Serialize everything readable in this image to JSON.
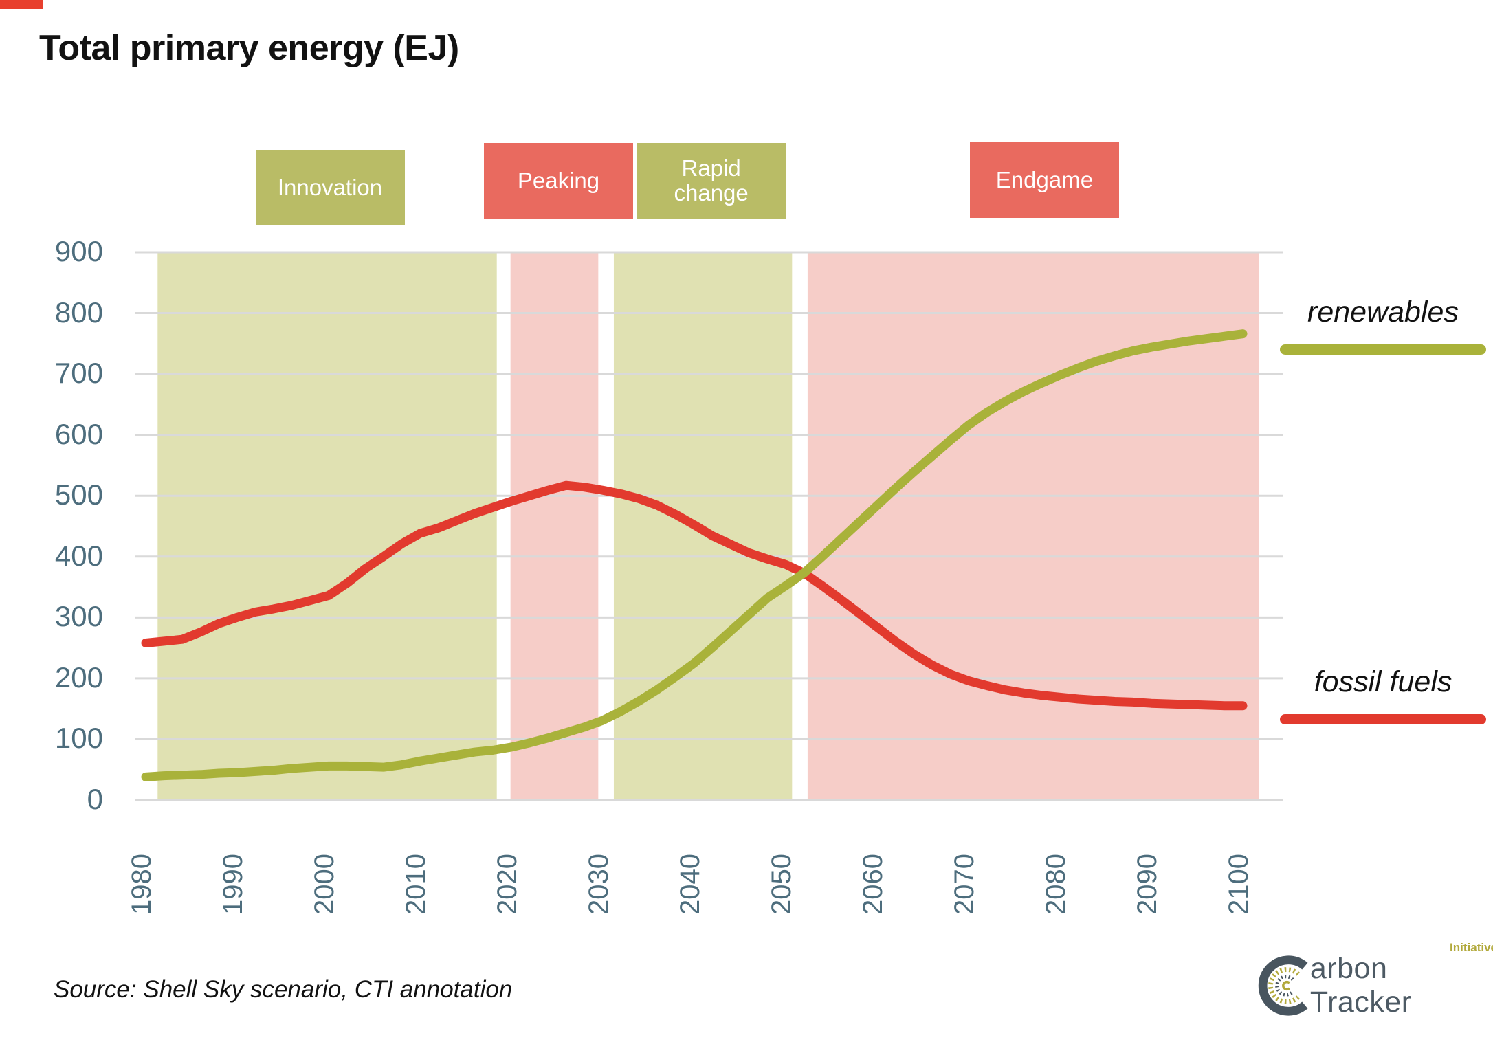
{
  "title": "Total primary energy (EJ)",
  "accent_color": "#e8402e",
  "colors": {
    "renewables_line": "#a9b23a",
    "fossil_line": "#e23a2e",
    "olive_band": "#e0e1b2",
    "pink_band": "#f6cdc8",
    "olive_box": "#b9bc66",
    "red_box": "#e96a5f",
    "axis_text": "#4d6d7d",
    "gridline": "#d9d9d9",
    "logo_slate": "#4d5a64",
    "logo_olive": "#b2a93c"
  },
  "phases": [
    {
      "id": "innovation",
      "label": "Innovation",
      "box_color": "#b9bc66",
      "band_color": "#e0e1b2",
      "band_years": [
        1981.3,
        2018.4
      ]
    },
    {
      "id": "peaking",
      "label": "Peaking",
      "box_color": "#e96a5f",
      "band_color": "#f6cdc8",
      "band_years": [
        2019.9,
        2029.5
      ]
    },
    {
      "id": "rapid-change",
      "label": "Rapid change",
      "box_color": "#b9bc66",
      "band_color": "#e0e1b2",
      "band_years": [
        2031.2,
        2050.7
      ]
    },
    {
      "id": "endgame",
      "label": "Endgame",
      "box_color": "#e96a5f",
      "band_color": "#f6cdc8",
      "band_years": [
        2052.4,
        2101.8
      ]
    }
  ],
  "legend": [
    {
      "id": "renewables",
      "label": "renewables",
      "color": "#a9b23a"
    },
    {
      "id": "fossil-fuels",
      "label": "fossil fuels",
      "color": "#e23a2e"
    }
  ],
  "source_text": "Source: Shell Sky scenario, CTI annotation",
  "logo": {
    "text": "arbon Tracker",
    "initiative": "Initiative"
  },
  "chart_data": {
    "type": "line",
    "title": "Total primary energy (EJ)",
    "xlabel": "",
    "ylabel": "EJ",
    "xlim": [
      1980,
      2100
    ],
    "ylim": [
      0,
      900
    ],
    "x_ticks": [
      1980,
      1990,
      2000,
      2010,
      2020,
      2030,
      2040,
      2050,
      2060,
      2070,
      2080,
      2090,
      2100
    ],
    "y_ticks": [
      0,
      100,
      200,
      300,
      400,
      500,
      600,
      700,
      800,
      900
    ],
    "grid": true,
    "legend_position": "right",
    "x": [
      1980,
      1982,
      1984,
      1986,
      1988,
      1990,
      1992,
      1994,
      1996,
      1998,
      2000,
      2002,
      2004,
      2006,
      2008,
      2010,
      2012,
      2014,
      2016,
      2018,
      2020,
      2022,
      2024,
      2026,
      2028,
      2030,
      2032,
      2034,
      2036,
      2038,
      2040,
      2042,
      2044,
      2046,
      2048,
      2050,
      2052,
      2054,
      2056,
      2058,
      2060,
      2062,
      2064,
      2066,
      2068,
      2070,
      2072,
      2074,
      2076,
      2078,
      2080,
      2082,
      2084,
      2086,
      2088,
      2090,
      2092,
      2094,
      2096,
      2098,
      2100
    ],
    "series": [
      {
        "name": "fossil fuels",
        "color": "#e23a2e",
        "values": [
          258,
          261,
          264,
          276,
          290,
          300,
          309,
          314,
          320,
          328,
          336,
          356,
          380,
          400,
          421,
          438,
          447,
          459,
          471,
          481,
          491,
          500,
          509,
          517,
          514,
          509,
          503,
          495,
          484,
          469,
          452,
          434,
          420,
          406,
          396,
          387,
          373,
          352,
          330,
          307,
          284,
          261,
          240,
          222,
          207,
          196,
          188,
          181,
          176,
          172,
          169,
          166,
          164,
          162,
          161,
          159,
          158,
          157,
          156,
          155,
          155
        ]
      },
      {
        "name": "renewables",
        "color": "#a9b23a",
        "values": [
          38,
          40,
          41,
          42,
          44,
          45,
          47,
          49,
          52,
          54,
          56,
          56,
          55,
          54,
          58,
          64,
          69,
          74,
          79,
          82,
          87,
          94,
          102,
          111,
          120,
          131,
          146,
          163,
          182,
          203,
          225,
          251,
          278,
          305,
          332,
          352,
          373,
          400,
          428,
          456,
          484,
          512,
          539,
          565,
          591,
          616,
          637,
          655,
          671,
          685,
          698,
          710,
          721,
          730,
          738,
          744,
          749,
          754,
          758,
          762,
          766
        ]
      }
    ],
    "annotations": [
      "Innovation",
      "Peaking",
      "Rapid change",
      "Endgame"
    ]
  }
}
